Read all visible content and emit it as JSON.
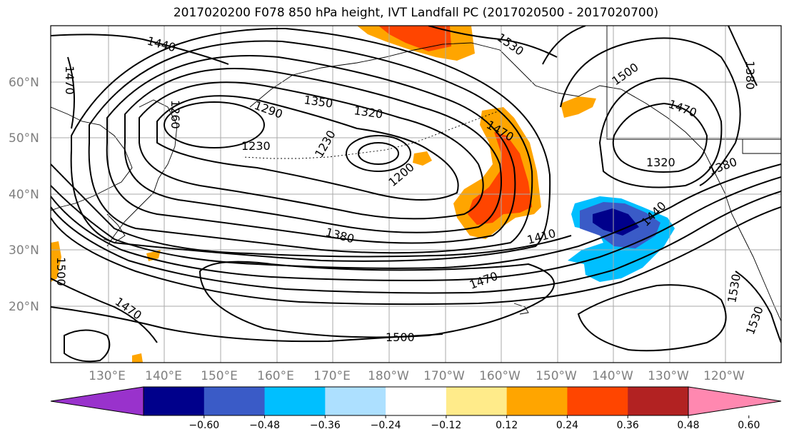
{
  "title": "2017020200 F078 850 hPa height, IVT Landfall PC (2017020500 - 2017020700)",
  "lat_labels": [
    "60°N",
    "50°N",
    "40°N",
    "30°N",
    "20°N"
  ],
  "lon_labels": [
    "130°E",
    "140°E",
    "150°E",
    "160°E",
    "170°E",
    "180°W",
    "170°W",
    "160°W",
    "150°W",
    "140°W",
    "130°W",
    "120°W"
  ],
  "contour_labels": [
    "1440",
    "1470",
    "1260",
    "1290",
    "1350",
    "1320",
    "1230",
    "1230",
    "1200",
    "1470",
    "1530",
    "1500",
    "1380",
    "1410",
    "1470",
    "1440",
    "1500",
    "1470",
    "1500",
    "1320",
    "1380",
    "1470",
    "1380",
    "1530",
    "1530"
  ],
  "colorbar": {
    "ticks": [
      "−0.60",
      "−0.48",
      "−0.36",
      "−0.24",
      "−0.12",
      "0.12",
      "0.24",
      "0.36",
      "0.48",
      "0.60"
    ],
    "colors": [
      "#9932CC",
      "#00008B",
      "#3A5BC7",
      "#00BFFF",
      "#ADE0FF",
      "#FFFFFF",
      "#FFEB8A",
      "#FFA500",
      "#FF4500",
      "#B22222",
      "#FF88B0"
    ]
  }
}
